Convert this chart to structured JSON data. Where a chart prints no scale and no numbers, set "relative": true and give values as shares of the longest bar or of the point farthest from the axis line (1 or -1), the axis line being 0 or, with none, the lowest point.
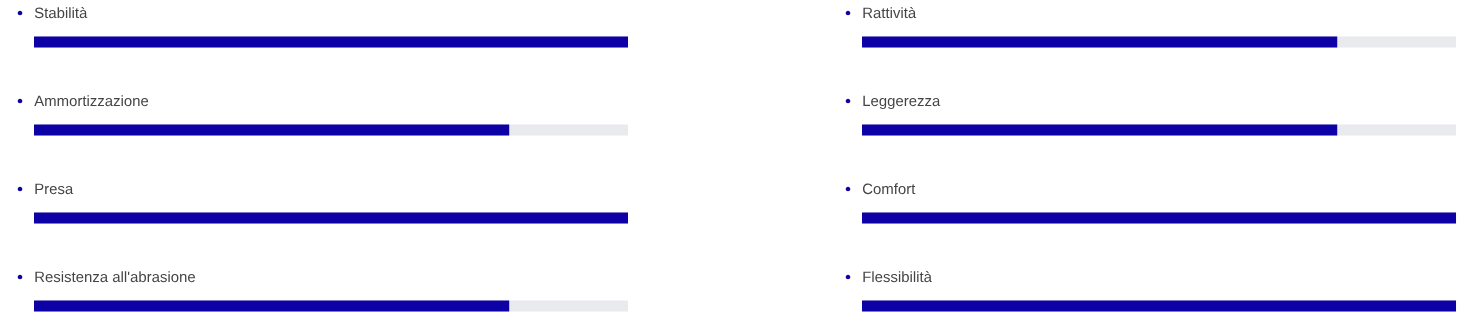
{
  "chart_data": [
    {
      "type": "bar",
      "orientation": "horizontal",
      "relative": true,
      "color": "#0d00a4",
      "categories": [
        "Stabilità",
        "Ammortizzazione",
        "Presa",
        "Resistenza all'abrasione"
      ],
      "values": [
        1,
        0.8,
        1,
        0.8
      ]
    },
    {
      "type": "bar",
      "orientation": "horizontal",
      "relative": true,
      "color": "#0d00a4",
      "categories": [
        "Rattività",
        "Leggerezza",
        "Comfort",
        "Flessibilità"
      ],
      "values": [
        0.8,
        0.8,
        1,
        1
      ]
    }
  ]
}
